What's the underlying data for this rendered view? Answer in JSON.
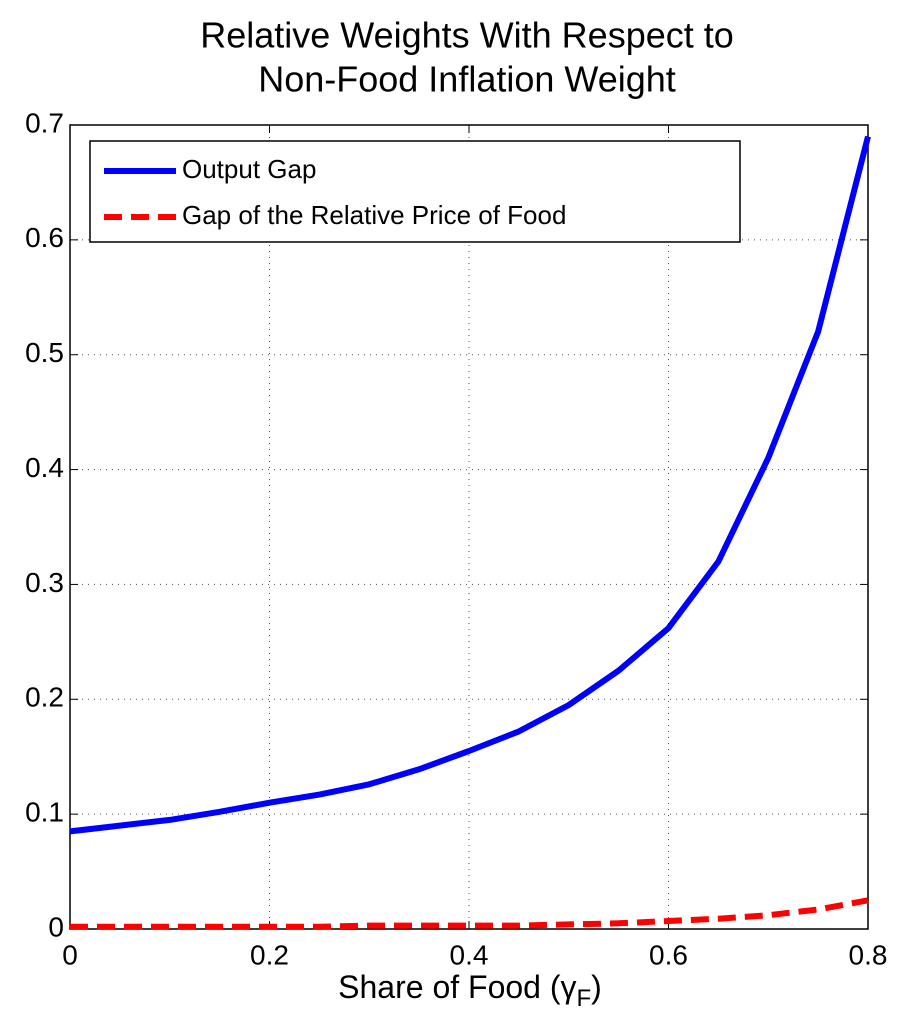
{
  "chart_data": {
    "type": "line",
    "title": [
      "Relative Weights With Respect to",
      "Non-Food Inflation Weight"
    ],
    "xlabel": {
      "main": "Share of Food (γ",
      "subscript": "F",
      "close": ")"
    },
    "x": [
      0,
      0.05,
      0.1,
      0.15,
      0.2,
      0.25,
      0.3,
      0.35,
      0.4,
      0.45,
      0.5,
      0.55,
      0.6,
      0.65,
      0.7,
      0.75,
      0.8
    ],
    "series": [
      {
        "name": "Output Gap",
        "color": "#0000ff",
        "dash": false,
        "values": [
          0.085,
          0.09,
          0.095,
          0.102,
          0.11,
          0.117,
          0.126,
          0.139,
          0.155,
          0.172,
          0.195,
          0.225,
          0.262,
          0.32,
          0.41,
          0.52,
          0.69
        ]
      },
      {
        "name": "Gap of the Relative Price of Food",
        "color": "#ff0000",
        "dash": true,
        "values": [
          0.002,
          0.002,
          0.002,
          0.002,
          0.002,
          0.002,
          0.003,
          0.003,
          0.003,
          0.003,
          0.004,
          0.005,
          0.007,
          0.009,
          0.012,
          0.017,
          0.025
        ]
      }
    ],
    "xlim": [
      0,
      0.8
    ],
    "xticks": [
      0,
      0.2,
      0.4,
      0.6,
      0.8
    ],
    "ylim": [
      0,
      0.7
    ],
    "yticks": [
      0,
      0.1,
      0.2,
      0.3,
      0.4,
      0.5,
      0.6,
      0.7
    ],
    "grid": true,
    "legend": "upper left"
  }
}
